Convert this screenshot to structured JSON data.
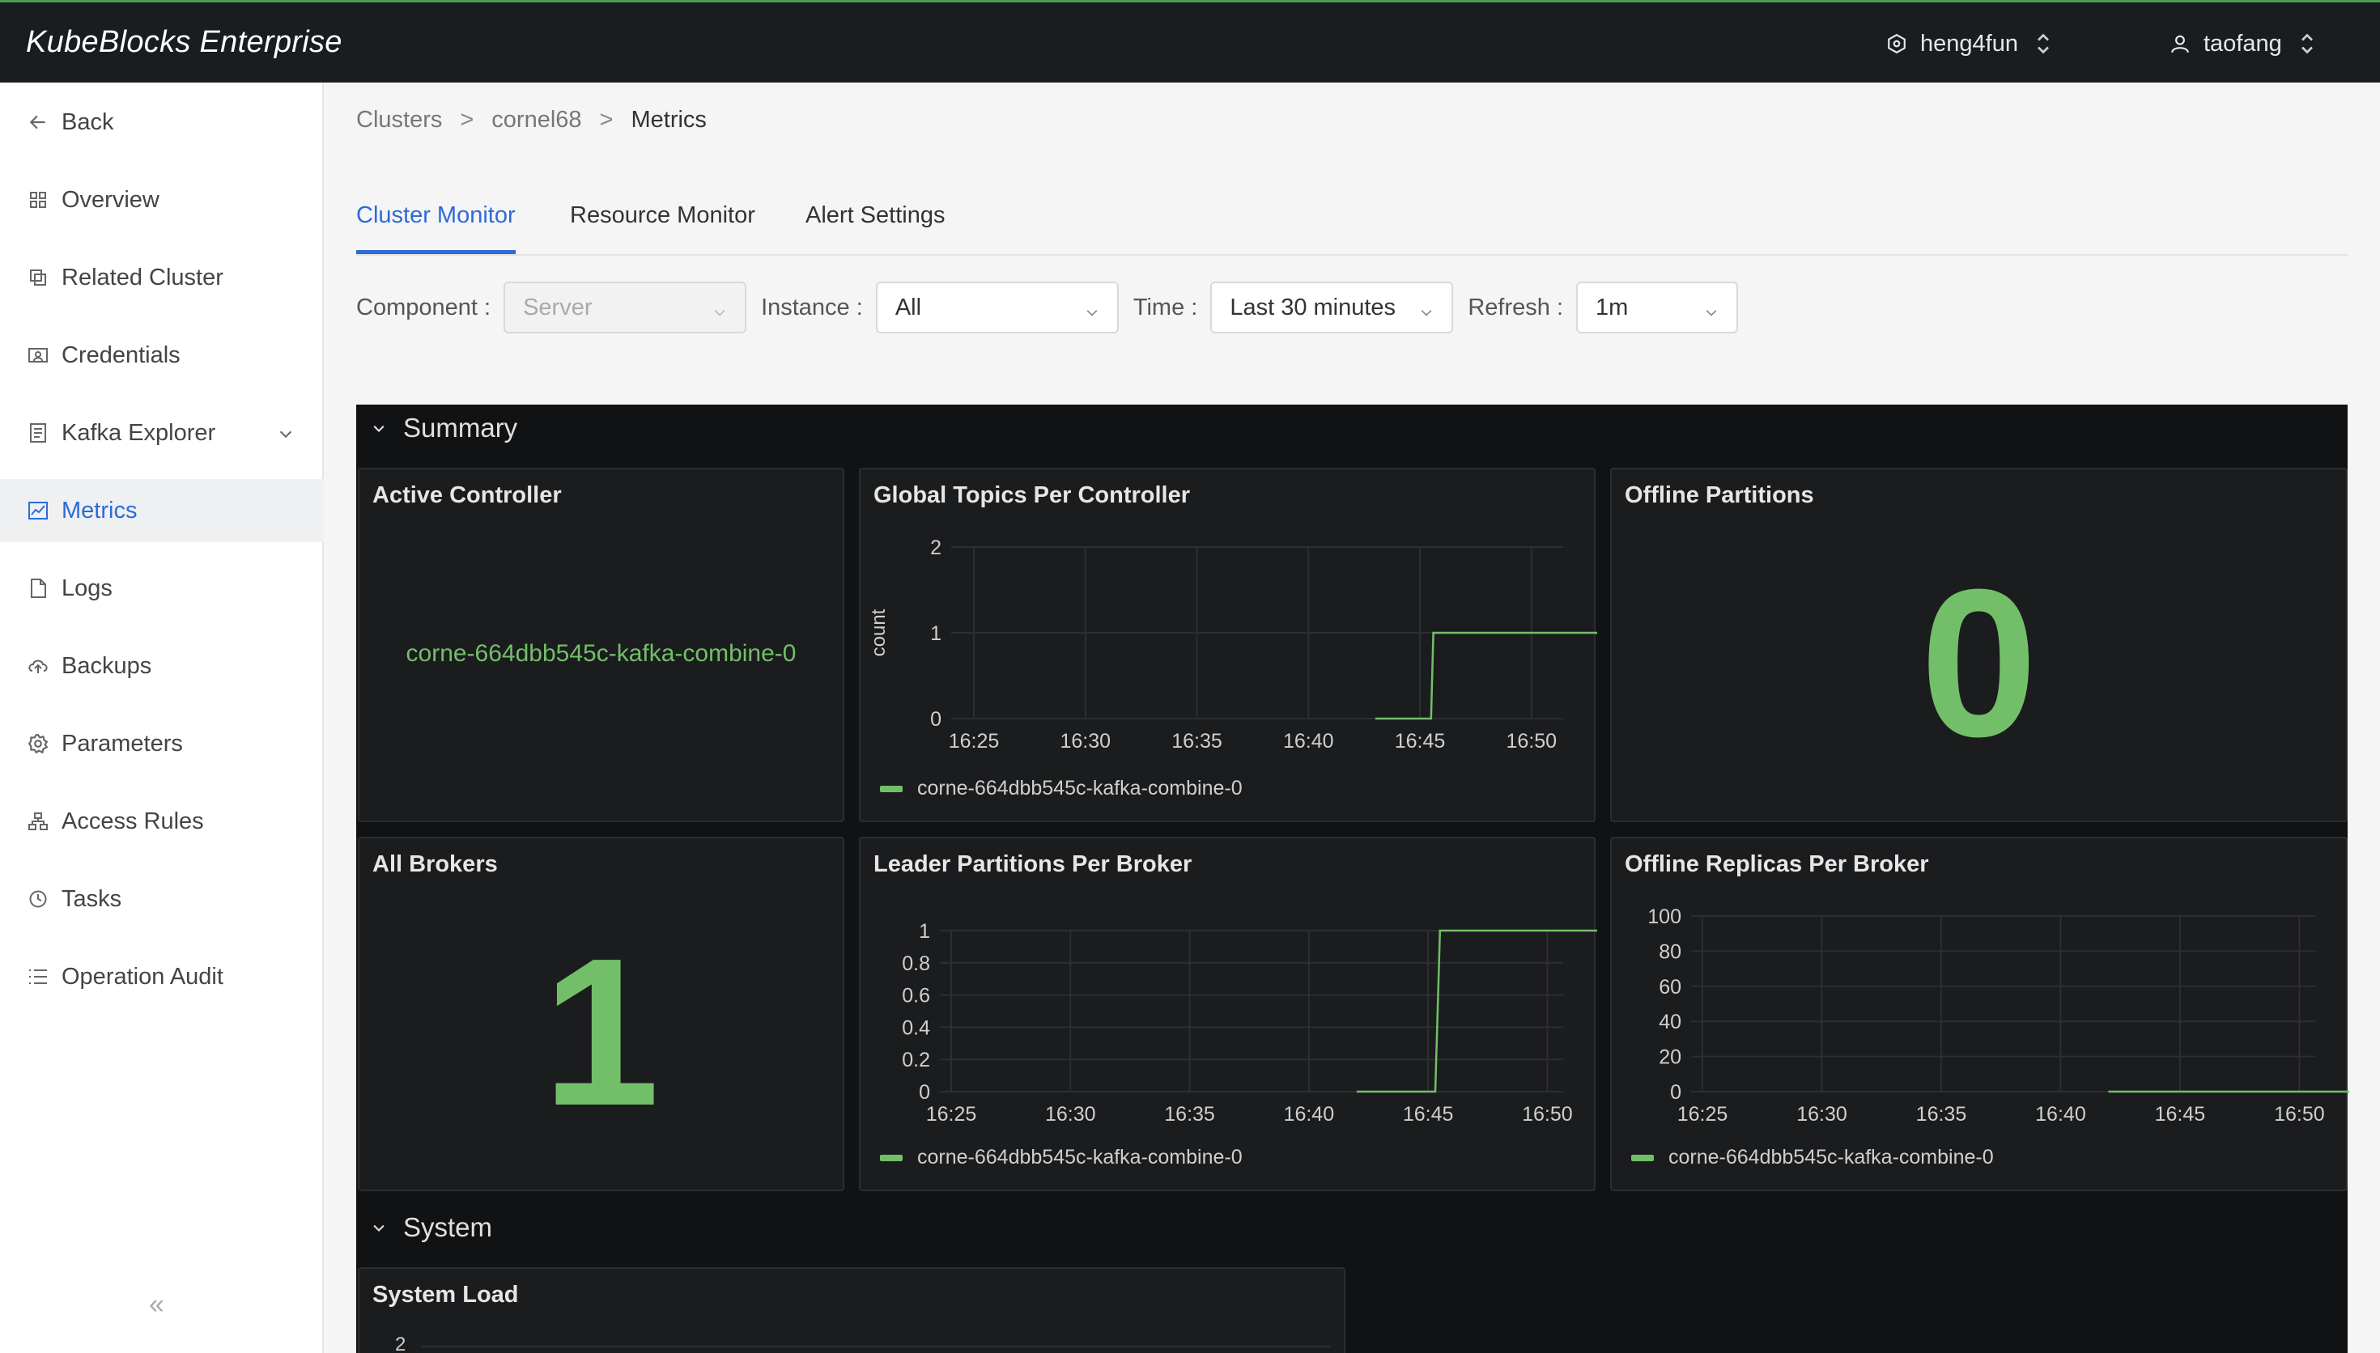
{
  "app": {
    "brand": "KubeBlocks Enterprise",
    "org": "heng4fun",
    "user": "taofang",
    "icons": {
      "org": "org-icon",
      "user": "user-icon",
      "updown": "updown-icon"
    }
  },
  "sidebar": {
    "items": [
      {
        "label": "Back",
        "icon": "arrow-left-icon"
      },
      {
        "label": "Overview",
        "icon": "grid-icon"
      },
      {
        "label": "Related Cluster",
        "icon": "copy-icon"
      },
      {
        "label": "Credentials",
        "icon": "id-card-icon"
      },
      {
        "label": "Kafka Explorer",
        "icon": "document-icon"
      },
      {
        "label": "Metrics",
        "icon": "chart-icon"
      },
      {
        "label": "Logs",
        "icon": "file-icon"
      },
      {
        "label": "Backups",
        "icon": "cloud-upload-icon"
      },
      {
        "label": "Parameters",
        "icon": "gear-icon"
      },
      {
        "label": "Access Rules",
        "icon": "network-icon"
      },
      {
        "label": "Tasks",
        "icon": "clock-icon"
      },
      {
        "label": "Operation Audit",
        "icon": "list-icon"
      }
    ],
    "active": "Metrics",
    "collapse_glyph": "«"
  },
  "breadcrumb": {
    "items": [
      "Clusters",
      "cornel68",
      "Metrics"
    ],
    "separator": ">"
  },
  "tabs": [
    "Cluster Monitor",
    "Resource Monitor",
    "Alert Settings"
  ],
  "filters": {
    "component": {
      "label": "Component",
      "value": "Server"
    },
    "instance": {
      "label": "Instance",
      "value": "All"
    },
    "time": {
      "label": "Time",
      "value": "Last 30 minutes"
    },
    "refresh": {
      "label": "Refresh",
      "value": "1m"
    },
    "colon": ":"
  },
  "sections": {
    "summary": "Summary",
    "system": "System"
  },
  "panels": {
    "active_controller": {
      "title": "Active Controller",
      "value": "corne-664dbb545c-kafka-combine-0"
    },
    "offline_partitions": {
      "title": "Offline Partitions",
      "value": "0"
    },
    "all_brokers": {
      "title": "All Brokers",
      "value": "1"
    },
    "system_load": {
      "title": "System Load",
      "first_tick": "2"
    }
  },
  "colors": {
    "series": "#73bf69",
    "accent": "#2d6bd7",
    "panel_bg": "#1b1c1e"
  },
  "chart_data": [
    {
      "type": "line",
      "title": "Global Topics Per Controller",
      "xlabel": "",
      "ylabel": "count",
      "x_ticks": [
        "16:25",
        "16:30",
        "16:35",
        "16:40",
        "16:45",
        "16:50"
      ],
      "y_ticks": [
        "0",
        "1",
        "2"
      ],
      "ylim": [
        0,
        2
      ],
      "series": [
        {
          "name": "corne-664dbb545c-kafka-combine-0",
          "points": [
            [
              "16:43",
              0
            ],
            [
              "16:45.5",
              0
            ],
            [
              "16:45.6",
              1
            ],
            [
              "16:53",
              1
            ]
          ]
        }
      ],
      "legend": "bottom-left",
      "grid": true
    },
    {
      "type": "line",
      "title": "Leader Partitions Per Broker",
      "xlabel": "",
      "ylabel": "",
      "x_ticks": [
        "16:25",
        "16:30",
        "16:35",
        "16:40",
        "16:45",
        "16:50"
      ],
      "y_ticks": [
        "0",
        "0.2",
        "0.4",
        "0.6",
        "0.8",
        "1"
      ],
      "ylim": [
        0,
        1
      ],
      "series": [
        {
          "name": "corne-664dbb545c-kafka-combine-0",
          "points": [
            [
              "16:42",
              0
            ],
            [
              "16:45.3",
              0
            ],
            [
              "16:45.5",
              1
            ],
            [
              "16:53",
              1
            ]
          ]
        }
      ],
      "legend": "bottom-left",
      "grid": true
    },
    {
      "type": "line",
      "title": "Offline Replicas Per Broker",
      "xlabel": "",
      "ylabel": "",
      "x_ticks": [
        "16:25",
        "16:30",
        "16:35",
        "16:40",
        "16:45",
        "16:50"
      ],
      "y_ticks": [
        "0",
        "20",
        "40",
        "60",
        "80",
        "100"
      ],
      "ylim": [
        0,
        100
      ],
      "series": [
        {
          "name": "corne-664dbb545c-kafka-combine-0",
          "points": [
            [
              "16:42",
              0
            ],
            [
              "16:53",
              0
            ]
          ]
        }
      ],
      "legend": "bottom-left",
      "grid": true
    }
  ]
}
